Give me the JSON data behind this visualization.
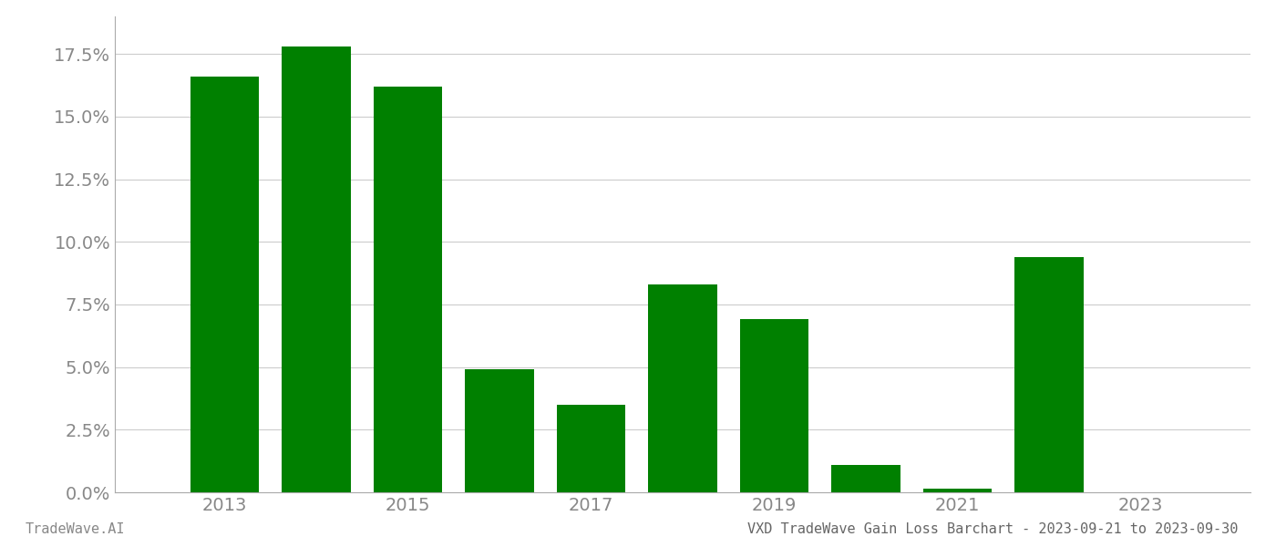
{
  "years": [
    2013,
    2014,
    2015,
    2016,
    2017,
    2018,
    2019,
    2020,
    2021,
    2022,
    2023
  ],
  "values": [
    0.166,
    0.178,
    0.162,
    0.049,
    0.035,
    0.083,
    0.069,
    0.011,
    0.0015,
    0.094,
    0.0
  ],
  "bar_color": "#008000",
  "background_color": "#ffffff",
  "grid_color": "#cccccc",
  "title": "VXD TradeWave Gain Loss Barchart - 2023-09-21 to 2023-09-30",
  "footer_left": "TradeWave.AI",
  "ylim": [
    0,
    0.19
  ],
  "yticks": [
    0.0,
    0.025,
    0.05,
    0.075,
    0.1,
    0.125,
    0.15,
    0.175
  ],
  "xtick_labels": [
    "2013",
    "2015",
    "2017",
    "2019",
    "2021",
    "2023"
  ],
  "xtick_positions": [
    2013,
    2015,
    2017,
    2019,
    2021,
    2023
  ],
  "axis_color": "#aaaaaa",
  "tick_label_color": "#888888",
  "title_color": "#666666",
  "footer_color": "#888888",
  "bar_width": 0.75,
  "xlim_left": 2011.8,
  "xlim_right": 2024.2
}
